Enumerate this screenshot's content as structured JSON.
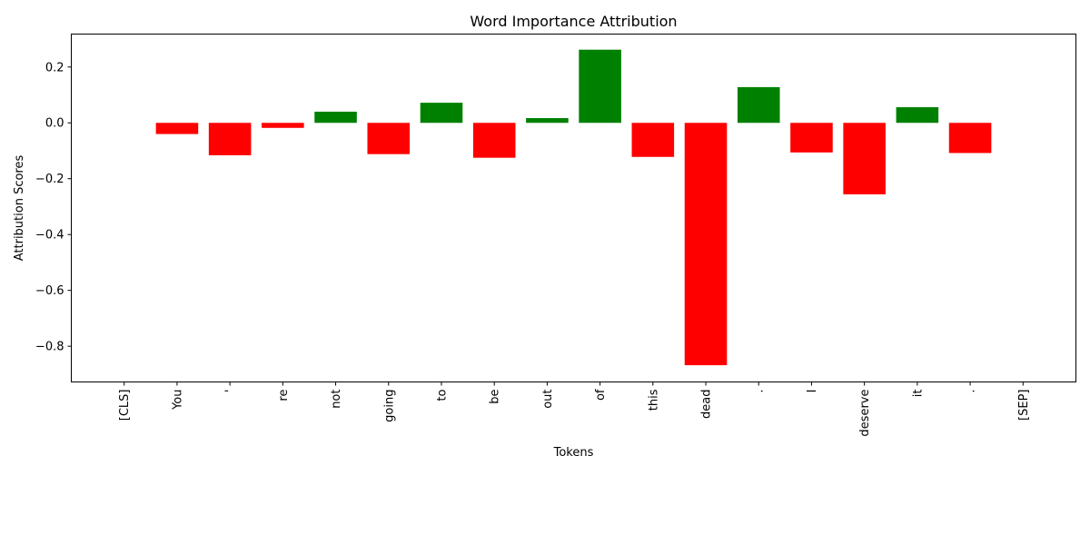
{
  "chart_data": {
    "type": "bar",
    "title": "Word Importance Attribution",
    "xlabel": "Tokens",
    "ylabel": "Attribution Scores",
    "categories": [
      "[CLS]",
      "You",
      "'",
      "re",
      "not",
      "going",
      "to",
      "be",
      "out",
      "of",
      "this",
      "dead",
      ".",
      "I",
      "deserve",
      "it",
      ".",
      "[SEP]"
    ],
    "values": [
      0.0,
      -0.04,
      -0.116,
      -0.018,
      0.04,
      -0.112,
      0.072,
      -0.125,
      0.017,
      0.262,
      -0.122,
      -0.868,
      0.128,
      -0.106,
      -0.256,
      0.056,
      -0.108,
      0.0
    ],
    "ylim": [
      -0.928,
      0.318
    ],
    "yticks": [
      0.2,
      0.0,
      -0.2,
      -0.4,
      -0.6,
      -0.8
    ],
    "ytick_labels": [
      "0.2",
      "0.0",
      "−0.2",
      "−0.4",
      "−0.6",
      "−0.8"
    ],
    "colors": {
      "positive": "#008000",
      "negative": "#ff0000"
    },
    "grid": false,
    "legend": "none"
  }
}
